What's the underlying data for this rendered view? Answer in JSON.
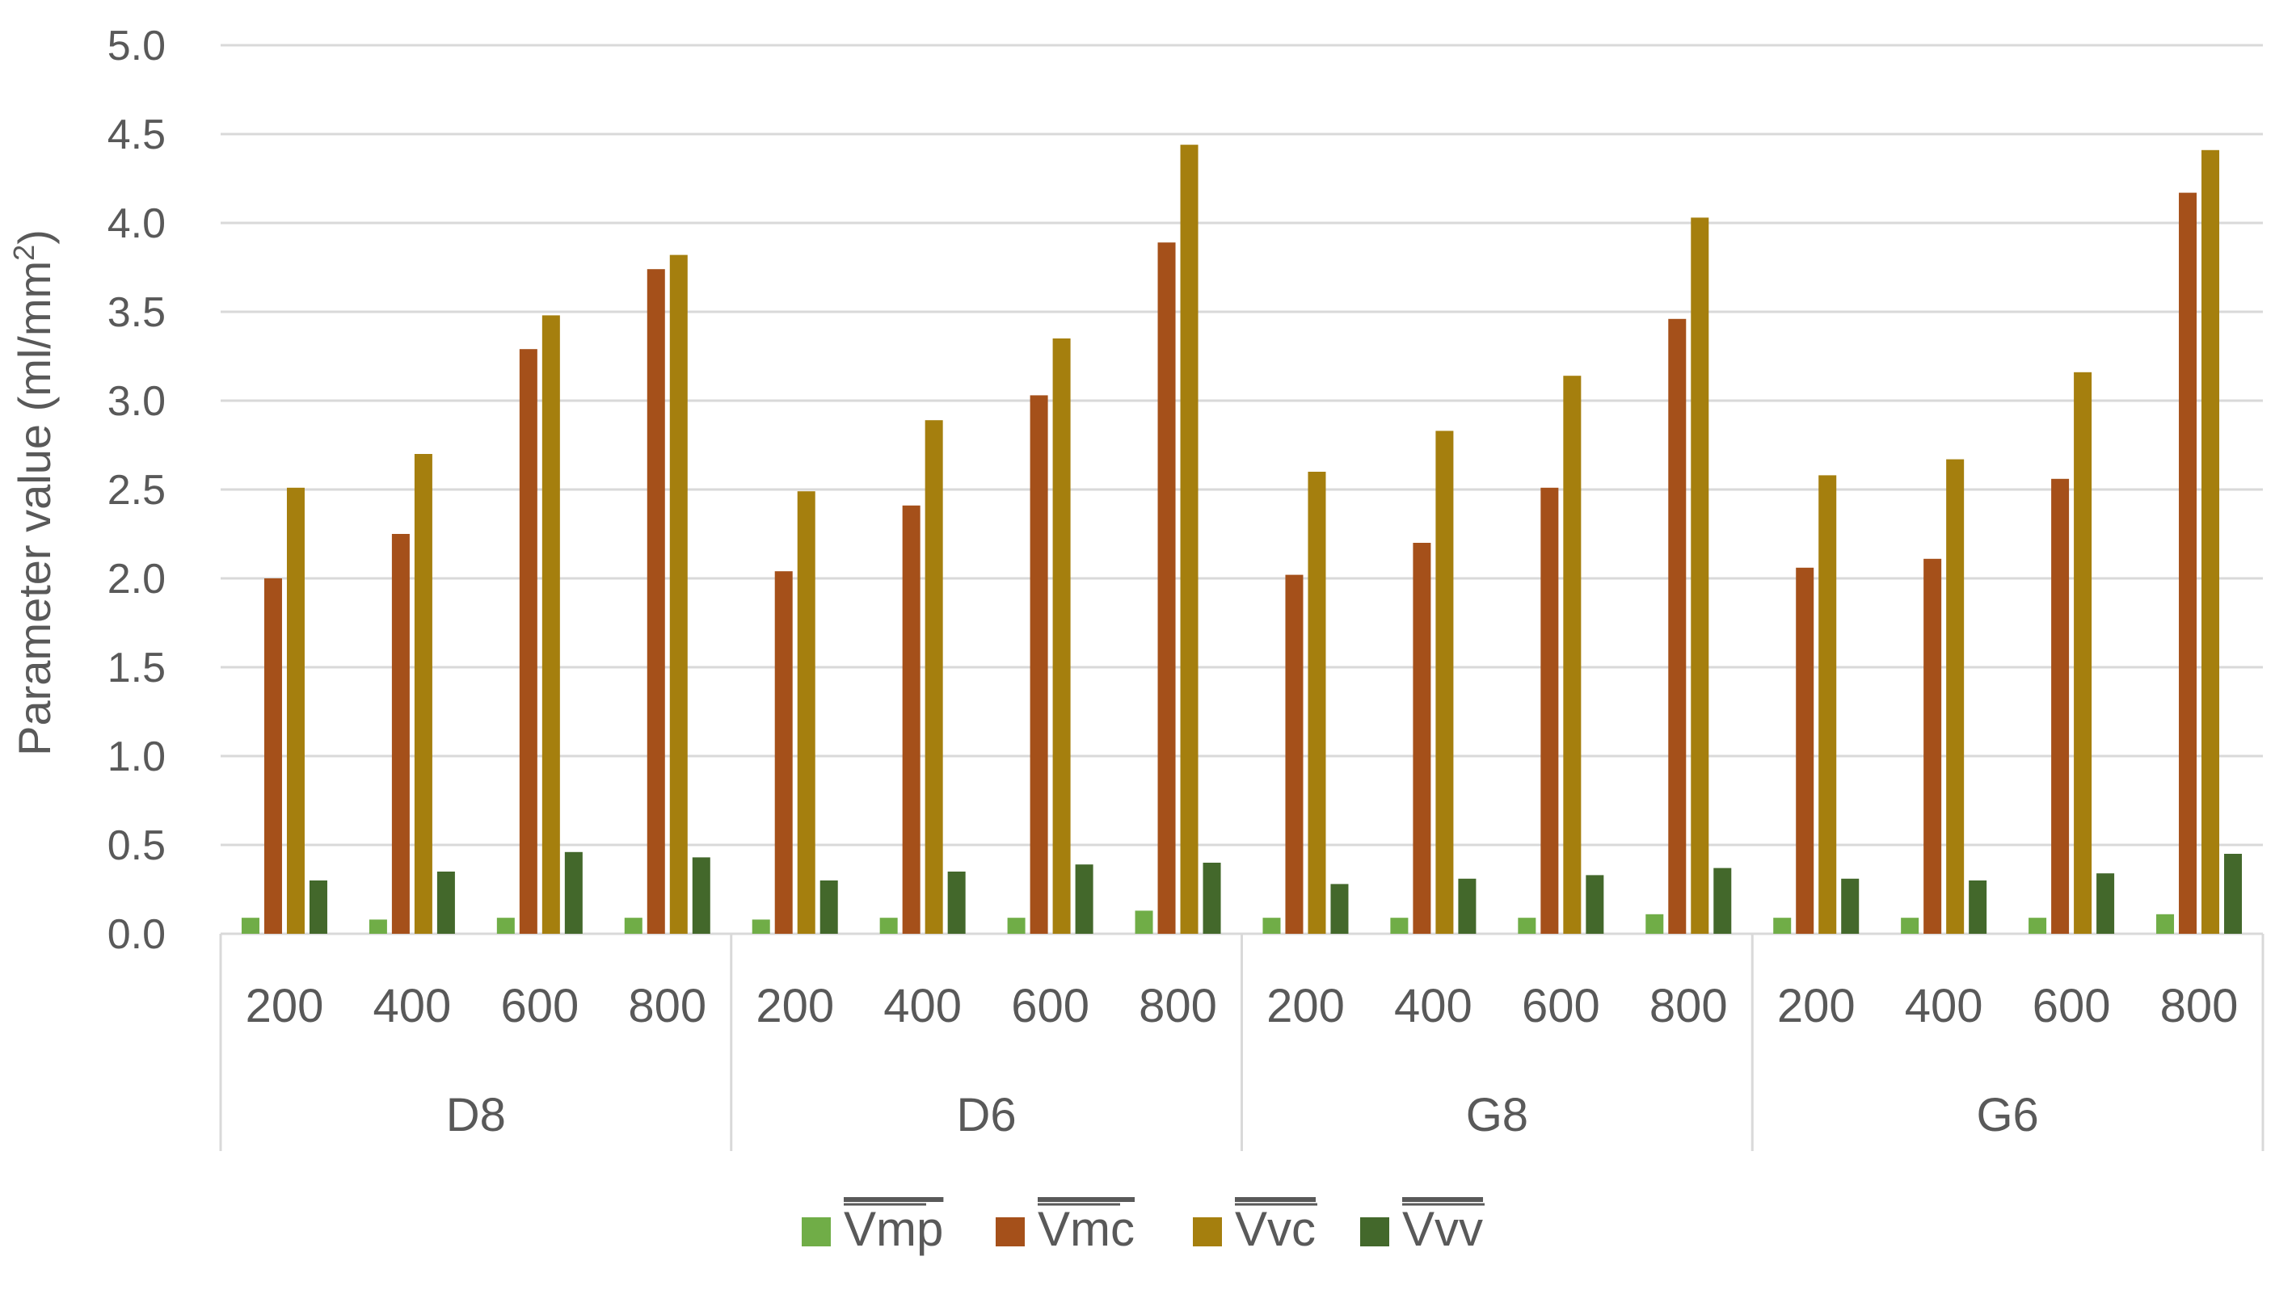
{
  "chart_data": {
    "type": "bar",
    "ylabel": "Parameter value (ml/mm",
    "ylabel_sup": "2",
    "ylabel_end": ")",
    "ylim": [
      0,
      5
    ],
    "yticks": [
      "0.0",
      "0.5",
      "1.0",
      "1.5",
      "2.0",
      "2.5",
      "3.0",
      "3.5",
      "4.0",
      "4.5",
      "5.0"
    ],
    "grid": true,
    "legend_position": "bottom",
    "groups": [
      {
        "name": "D8",
        "categories": [
          "200",
          "400",
          "600",
          "800"
        ]
      },
      {
        "name": "D6",
        "categories": [
          "200",
          "400",
          "600",
          "800"
        ]
      },
      {
        "name": "G8",
        "categories": [
          "200",
          "400",
          "600",
          "800"
        ]
      },
      {
        "name": "G6",
        "categories": [
          "200",
          "400",
          "600",
          "800"
        ]
      }
    ],
    "series": [
      {
        "name": "Vmp",
        "color": "#70ad47",
        "values": [
          0.09,
          0.08,
          0.09,
          0.09,
          0.08,
          0.09,
          0.09,
          0.13,
          0.09,
          0.09,
          0.09,
          0.11,
          0.09,
          0.09,
          0.09,
          0.11
        ]
      },
      {
        "name": "Vmc",
        "color": "#a5501a",
        "values": [
          2.0,
          2.25,
          3.29,
          3.74,
          2.04,
          2.41,
          3.03,
          3.89,
          2.02,
          2.2,
          2.51,
          3.46,
          2.06,
          2.11,
          2.56,
          4.17
        ]
      },
      {
        "name": "Vvc",
        "color": "#a57f0e",
        "values": [
          2.51,
          2.7,
          3.48,
          3.82,
          2.49,
          2.89,
          3.35,
          4.44,
          2.6,
          2.83,
          3.14,
          4.03,
          2.58,
          2.67,
          3.16,
          4.41
        ]
      },
      {
        "name": "Vvv",
        "color": "#43682b",
        "values": [
          0.3,
          0.35,
          0.46,
          0.43,
          0.3,
          0.35,
          0.39,
          0.4,
          0.28,
          0.31,
          0.33,
          0.37,
          0.31,
          0.3,
          0.34,
          0.45
        ]
      }
    ]
  }
}
